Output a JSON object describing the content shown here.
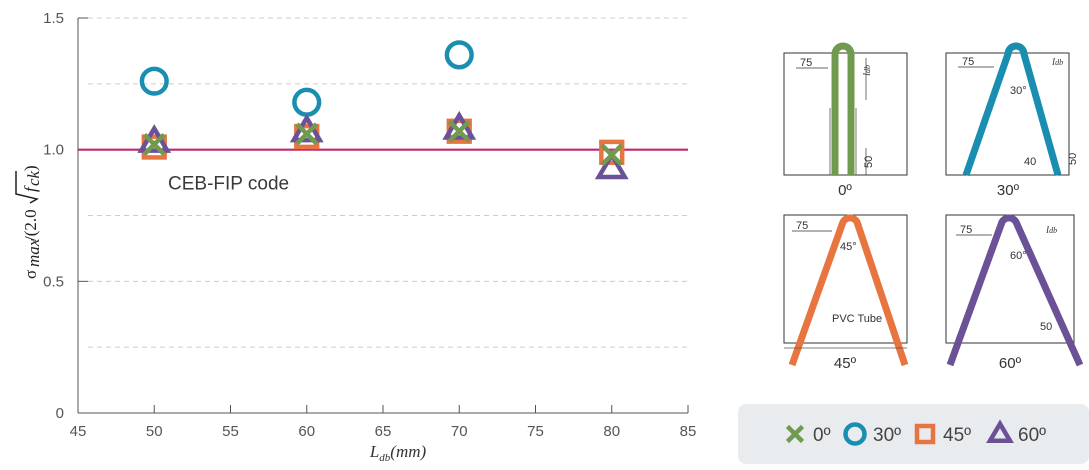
{
  "chart_data": {
    "type": "scatter",
    "xlabel_base": "L",
    "xlabel_sub": "db",
    "xlabel_rest": "(mm)",
    "ylabel": "σ max/(2.0 √fck)",
    "xlim": [
      45,
      85
    ],
    "ylim": [
      0,
      1.5
    ],
    "x_ticks": [
      "45",
      "50",
      "55",
      "60",
      "65",
      "70",
      "75",
      "80",
      "85"
    ],
    "y_ticks": [
      "0",
      "0.5",
      "1.0",
      "1.5"
    ],
    "reference_line": {
      "y": 1.0,
      "label": "CEB-FIP code",
      "color": "#c0266e"
    },
    "series": [
      {
        "name": "0º",
        "marker": "x",
        "color": "#6f9a4f",
        "x": [
          50,
          60,
          70,
          80
        ],
        "y": [
          1.02,
          1.06,
          1.07,
          0.98
        ]
      },
      {
        "name": "30º",
        "marker": "circle",
        "color": "#1a8eb0",
        "x": [
          50,
          60,
          70
        ],
        "y": [
          1.26,
          1.18,
          1.36
        ]
      },
      {
        "name": "45º",
        "marker": "square",
        "color": "#e8743f",
        "x": [
          50,
          60,
          70,
          80
        ],
        "y": [
          1.01,
          1.05,
          1.07,
          0.99
        ]
      },
      {
        "name": "60º",
        "marker": "triangle",
        "color": "#6b5196",
        "x": [
          50,
          60,
          70,
          80
        ],
        "y": [
          1.03,
          1.07,
          1.08,
          0.93
        ]
      }
    ],
    "grid": "horizontal dashed"
  },
  "diagrams": {
    "panels": [
      {
        "caption": "0º",
        "color": "#6f9a4f"
      },
      {
        "caption": "30º",
        "color": "#1a8eb0"
      },
      {
        "caption": "45º",
        "color": "#e8743f"
      },
      {
        "caption": "60º",
        "color": "#6b5196"
      }
    ],
    "dims": {
      "cover": "75",
      "embed_base": "l",
      "embed_sub": "db",
      "bottom_50": "50",
      "bottom_40": "40",
      "angle_30": "30°",
      "angle_45": "45°",
      "angle_60": "60°",
      "tube": "PVC Tube"
    }
  },
  "legend": {
    "items": [
      {
        "label": "0º",
        "color": "#6f9a4f",
        "marker": "x"
      },
      {
        "label": "30º",
        "color": "#1a8eb0",
        "marker": "circle"
      },
      {
        "label": "45º",
        "color": "#e8743f",
        "marker": "square"
      },
      {
        "label": "60º",
        "color": "#6b5196",
        "marker": "triangle"
      }
    ]
  },
  "colors": {
    "axis": "#555555",
    "grid": "#cccccc",
    "legend_bg": "#e9ecef"
  }
}
